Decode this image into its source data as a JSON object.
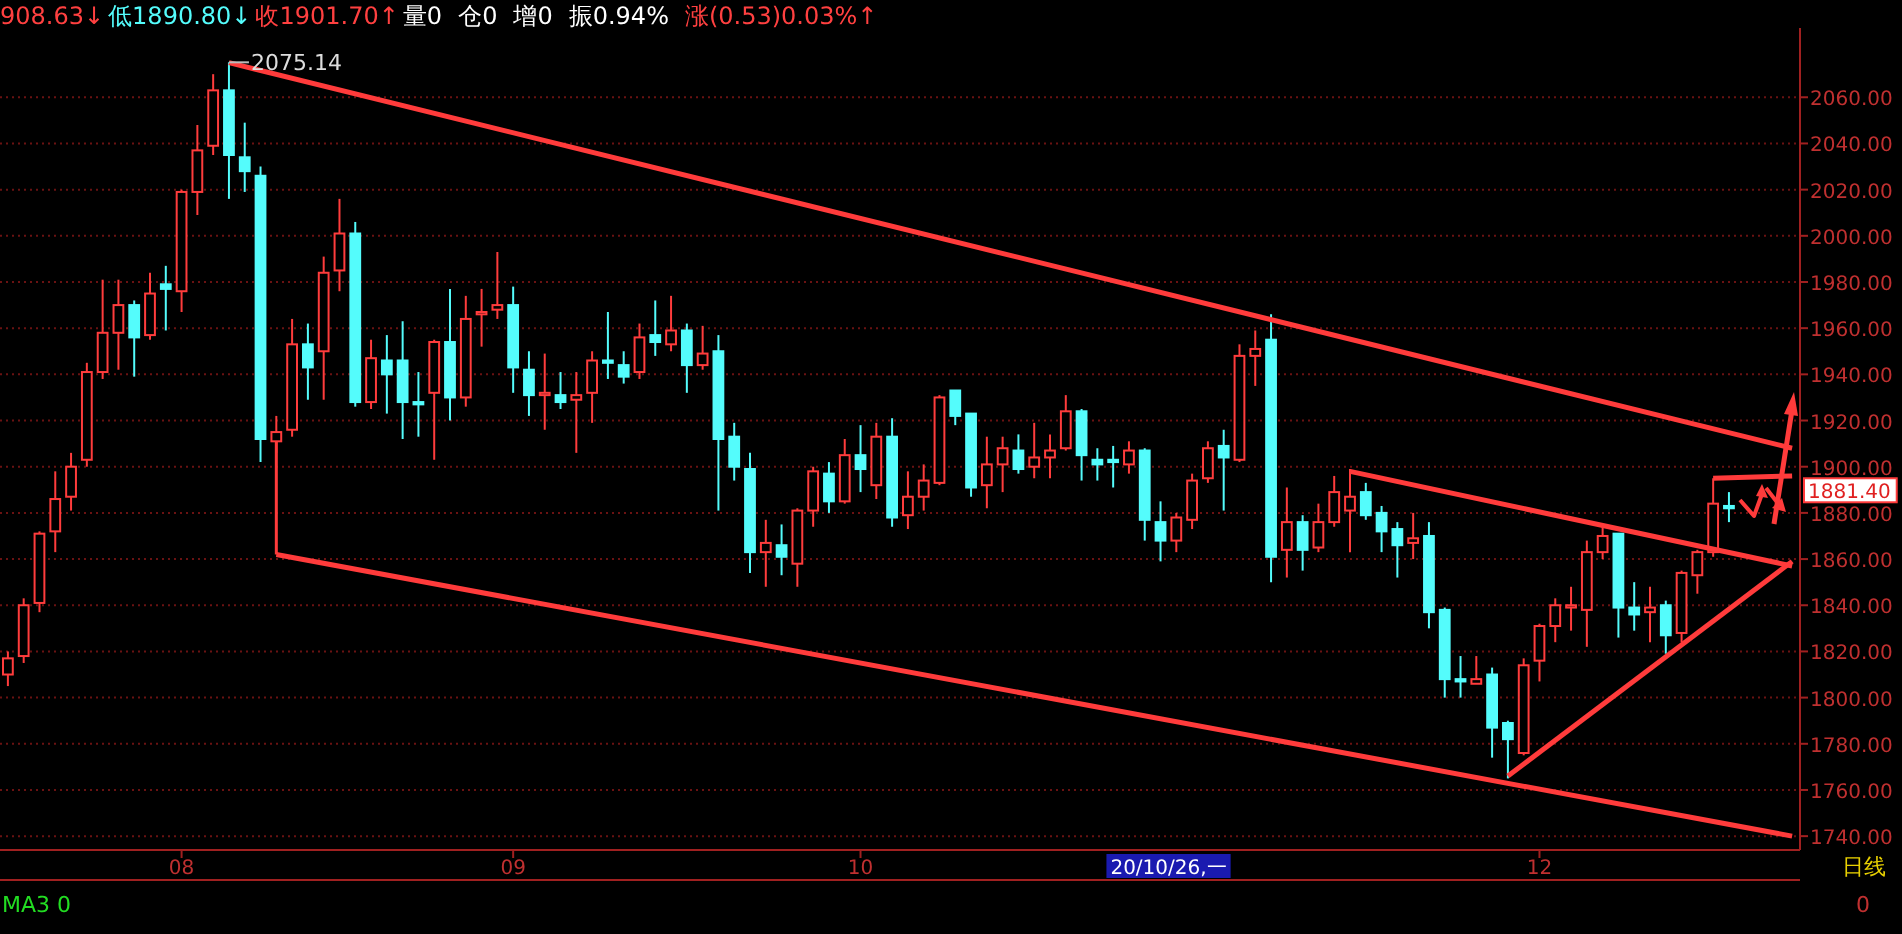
{
  "chart_data": {
    "type": "candlestick",
    "categories": [
      null,
      null,
      null,
      null,
      null,
      null,
      null,
      null,
      null,
      null,
      null,
      "08",
      null,
      null,
      null,
      null,
      null,
      null,
      null,
      null,
      null,
      null,
      null,
      null,
      null,
      null,
      null,
      null,
      null,
      null,
      null,
      null,
      "09",
      null,
      null,
      null,
      null,
      null,
      null,
      null,
      null,
      null,
      null,
      null,
      null,
      null,
      null,
      null,
      null,
      null,
      null,
      null,
      null,
      null,
      "10",
      null,
      null,
      null,
      null,
      null,
      null,
      null,
      null,
      null,
      null,
      null,
      null,
      null,
      null,
      null,
      null,
      null,
      null,
      null,
      null,
      null,
      null,
      null,
      null,
      null,
      null,
      null,
      null,
      null,
      null,
      null,
      null,
      null,
      null,
      null,
      null,
      null,
      null,
      null,
      null,
      null,
      null,
      "12",
      null,
      null,
      null,
      null,
      null,
      null,
      null,
      null,
      null,
      null,
      null,
      null,
      null,
      null,
      null,
      null
    ],
    "ohlc": [
      [
        1810,
        1820,
        1805,
        1817
      ],
      [
        1818,
        1843,
        1815,
        1840
      ],
      [
        1841,
        1872,
        1837,
        1871
      ],
      [
        1872,
        1898,
        1863,
        1886
      ],
      [
        1887,
        1906,
        1881,
        1900
      ],
      [
        1903,
        1945,
        1900,
        1941
      ],
      [
        1941,
        1981,
        1938,
        1958
      ],
      [
        1958,
        1981,
        1942,
        1970
      ],
      [
        1970,
        1972,
        1939,
        1956
      ],
      [
        1957,
        1984,
        1955,
        1975
      ],
      [
        1979,
        1987,
        1959,
        1977
      ],
      [
        1976,
        2020,
        1967,
        2019
      ],
      [
        2019,
        2048,
        2009,
        2037
      ],
      [
        2039,
        2070,
        2035,
        2063
      ],
      [
        2063,
        2075.14,
        2016,
        2035
      ],
      [
        2034,
        2049,
        2019,
        2028
      ],
      [
        2026,
        2030,
        1902,
        1912
      ],
      [
        1911,
        1922,
        1906,
        1915
      ],
      [
        1916,
        1964,
        1913,
        1953
      ],
      [
        1953,
        1962,
        1929,
        1943
      ],
      [
        1950,
        1991,
        1929,
        1984
      ],
      [
        1985,
        2016,
        1976,
        2001
      ],
      [
        2001,
        2006,
        1926,
        1928
      ],
      [
        1928,
        1955,
        1925,
        1947
      ],
      [
        1946,
        1957,
        1923,
        1940
      ],
      [
        1946,
        1963,
        1912,
        1928
      ],
      [
        1928,
        1941,
        1913,
        1927
      ],
      [
        1932,
        1955,
        1903,
        1954
      ],
      [
        1954,
        1977,
        1920,
        1930
      ],
      [
        1930,
        1974,
        1926,
        1964
      ],
      [
        1966,
        1977,
        1952,
        1967
      ],
      [
        1968,
        1993,
        1964,
        1970
      ],
      [
        1970,
        1978,
        1932,
        1943
      ],
      [
        1942,
        1950,
        1922,
        1931
      ],
      [
        1931,
        1949,
        1916,
        1932
      ],
      [
        1931,
        1941,
        1925,
        1928
      ],
      [
        1929,
        1941,
        1906,
        1931
      ],
      [
        1932,
        1950,
        1919,
        1946
      ],
      [
        1946,
        1967,
        1938,
        1945
      ],
      [
        1944,
        1950,
        1936,
        1939
      ],
      [
        1941,
        1962,
        1938,
        1956
      ],
      [
        1957,
        1972,
        1948,
        1954
      ],
      [
        1953,
        1974,
        1950,
        1959
      ],
      [
        1959,
        1962,
        1932,
        1944
      ],
      [
        1944,
        1961,
        1942,
        1949
      ],
      [
        1950,
        1957,
        1881,
        1912
      ],
      [
        1913,
        1919,
        1894,
        1900
      ],
      [
        1899,
        1906,
        1854,
        1863
      ],
      [
        1863,
        1877,
        1848,
        1867
      ],
      [
        1866,
        1875,
        1853,
        1861
      ],
      [
        1858,
        1882,
        1848,
        1881
      ],
      [
        1881,
        1900,
        1874,
        1898
      ],
      [
        1897,
        1902,
        1880,
        1885
      ],
      [
        1885,
        1912,
        1884,
        1905
      ],
      [
        1905,
        1918,
        1889,
        1899
      ],
      [
        1892,
        1919,
        1886,
        1913
      ],
      [
        1913,
        1921,
        1874,
        1878
      ],
      [
        1879,
        1898,
        1873,
        1887
      ],
      [
        1887,
        1901,
        1881,
        1894
      ],
      [
        1893,
        1931,
        1892,
        1930
      ],
      [
        1933,
        1933,
        1918,
        1922
      ],
      [
        1923,
        1923,
        1887,
        1891
      ],
      [
        1892,
        1913,
        1882,
        1901
      ],
      [
        1901,
        1913,
        1889,
        1908
      ],
      [
        1907,
        1914,
        1897,
        1899
      ],
      [
        1900,
        1919,
        1895,
        1904
      ],
      [
        1904,
        1914,
        1895,
        1907
      ],
      [
        1908,
        1931,
        1907,
        1924
      ],
      [
        1924,
        1925,
        1894,
        1905
      ],
      [
        1903,
        1908,
        1894,
        1901
      ],
      [
        1903,
        1909,
        1891,
        1902
      ],
      [
        1901,
        1911,
        1897,
        1907
      ],
      [
        1907,
        1908,
        1868,
        1877
      ],
      [
        1876,
        1885,
        1859,
        1868
      ],
      [
        1868,
        1880,
        1863,
        1878
      ],
      [
        1877,
        1897,
        1873,
        1894
      ],
      [
        1895,
        1911,
        1893,
        1908
      ],
      [
        1909,
        1916,
        1881,
        1904
      ],
      [
        1903,
        1953,
        1902,
        1948
      ],
      [
        1948,
        1959,
        1935,
        1951
      ],
      [
        1955,
        1966,
        1850,
        1861
      ],
      [
        1864,
        1891,
        1852,
        1876
      ],
      [
        1876,
        1879,
        1855,
        1864
      ],
      [
        1865,
        1884,
        1863,
        1876
      ],
      [
        1876,
        1896,
        1874,
        1889
      ],
      [
        1881,
        1899,
        1863,
        1887
      ],
      [
        1889,
        1893,
        1877,
        1879
      ],
      [
        1880,
        1883,
        1863,
        1872
      ],
      [
        1873,
        1876,
        1852,
        1866
      ],
      [
        1867,
        1880,
        1860,
        1869
      ],
      [
        1870,
        1876,
        1830,
        1837
      ],
      [
        1838,
        1839,
        1800,
        1808
      ],
      [
        1808,
        1818,
        1800,
        1807
      ],
      [
        1806,
        1818,
        1806,
        1808
      ],
      [
        1810,
        1813,
        1774,
        1787
      ],
      [
        1789,
        1790,
        1765,
        1782
      ],
      [
        1776,
        1817,
        1775,
        1814
      ],
      [
        1816,
        1832,
        1807,
        1831
      ],
      [
        1831,
        1843,
        1824,
        1840
      ],
      [
        1839,
        1848,
        1829,
        1840
      ],
      [
        1838,
        1868,
        1822,
        1863
      ],
      [
        1863,
        1874,
        1860,
        1870
      ],
      [
        1871,
        1871,
        1826,
        1839
      ],
      [
        1839,
        1850,
        1829,
        1836
      ],
      [
        1837,
        1848,
        1824,
        1839
      ],
      [
        1840,
        1842,
        1819,
        1827
      ],
      [
        1828,
        1855,
        1824,
        1854
      ],
      [
        1853,
        1864,
        1845,
        1863
      ],
      [
        1863,
        1895,
        1861,
        1884
      ],
      [
        1883,
        1889,
        1876,
        1882
      ],
      null,
      null,
      null,
      null
    ],
    "colors": [
      "#ff3c3c",
      "#ff3c3c",
      "#ff3c3c",
      "#ff3c3c",
      "#ff3c3c",
      "#ff3c3c",
      "#ff3c3c",
      "#ff3c3c",
      "#54fcfc",
      "#ff3c3c",
      "#54fcfc",
      "#ff3c3c",
      "#ff3c3c",
      "#ff3c3c",
      "#54fcfc",
      "#54fcfc",
      "#54fcfc",
      "#ff3c3c",
      "#ff3c3c",
      "#54fcfc",
      "#ff3c3c",
      "#ff3c3c",
      "#54fcfc",
      "#ff3c3c",
      "#54fcfc",
      "#54fcfc",
      "#54fcfc",
      "#ff3c3c",
      "#54fcfc",
      "#ff3c3c",
      "#ff3c3c",
      "#ff3c3c",
      "#54fcfc",
      "#54fcfc",
      "#ff3c3c",
      "#54fcfc",
      "#ff3c3c",
      "#ff3c3c",
      "#54fcfc",
      "#54fcfc",
      "#ff3c3c",
      "#54fcfc",
      "#ff3c3c",
      "#54fcfc",
      "#ff3c3c",
      "#54fcfc",
      "#54fcfc",
      "#54fcfc",
      "#ff3c3c",
      "#54fcfc",
      "#ff3c3c",
      "#ff3c3c",
      "#54fcfc",
      "#ff3c3c",
      "#54fcfc",
      "#ff3c3c",
      "#54fcfc",
      "#ff3c3c",
      "#ff3c3c",
      "#ff3c3c",
      "#54fcfc",
      "#54fcfc",
      "#ff3c3c",
      "#ff3c3c",
      "#54fcfc",
      "#ff3c3c",
      "#ff3c3c",
      "#ff3c3c",
      "#54fcfc",
      "#54fcfc",
      "#54fcfc",
      "#ff3c3c",
      "#54fcfc",
      "#54fcfc",
      "#ff3c3c",
      "#ff3c3c",
      "#ff3c3c",
      "#54fcfc",
      "#ff3c3c",
      "#ff3c3c",
      "#54fcfc",
      "#ff3c3c",
      "#54fcfc",
      "#ff3c3c",
      "#ff3c3c",
      "#ff3c3c",
      "#54fcfc",
      "#54fcfc",
      "#54fcfc",
      "#ff3c3c",
      "#54fcfc",
      "#54fcfc",
      "#54fcfc",
      "#ff3c3c",
      "#54fcfc",
      "#54fcfc",
      "#ff3c3c",
      "#ff3c3c",
      "#ff3c3c",
      "#ff3c3c",
      "#ff3c3c",
      "#ff3c3c",
      "#54fcfc",
      "#54fcfc",
      "#ff3c3c",
      "#54fcfc",
      "#ff3c3c",
      "#ff3c3c",
      "#ff3c3c",
      "#54fcfc",
      null,
      null,
      null,
      null
    ],
    "series": [
      {
        "type": "line",
        "color": "#ff3b3b",
        "values": [
          null,
          null,
          null,
          null,
          null,
          null,
          null,
          null,
          null,
          null,
          null,
          null,
          null,
          null,
          2075,
          null,
          null,
          null,
          null,
          null,
          null,
          null,
          null,
          null,
          null,
          null,
          null,
          null,
          null,
          null,
          null,
          null,
          null,
          null,
          null,
          null,
          null,
          null,
          null,
          null,
          null,
          null,
          null,
          null,
          null,
          null,
          null,
          null,
          null,
          null,
          null,
          null,
          null,
          null,
          null,
          null,
          null,
          null,
          null,
          null,
          null,
          null,
          null,
          null,
          null,
          null,
          null,
          null,
          null,
          null,
          null,
          null,
          null,
          null,
          null,
          null,
          null,
          null,
          null,
          null,
          null,
          null,
          null,
          null,
          null,
          null,
          null,
          null,
          null,
          null,
          null,
          null,
          null,
          null,
          null,
          null,
          null,
          null,
          null,
          null,
          null,
          null,
          null,
          null,
          null,
          null,
          null,
          null,
          null,
          null,
          null,
          null,
          null,
          1908
        ]
      },
      {
        "type": "line",
        "color": "#ff3b3b",
        "values": [
          null,
          null,
          null,
          null,
          null,
          null,
          null,
          null,
          null,
          null,
          null,
          null,
          null,
          null,
          null,
          null,
          null,
          1862,
          null,
          null,
          null,
          null,
          null,
          null,
          null,
          null,
          null,
          null,
          null,
          null,
          null,
          null,
          null,
          null,
          null,
          null,
          null,
          null,
          null,
          null,
          null,
          null,
          null,
          null,
          null,
          null,
          null,
          null,
          null,
          null,
          null,
          null,
          null,
          null,
          null,
          null,
          null,
          null,
          null,
          null,
          null,
          null,
          null,
          null,
          null,
          null,
          null,
          null,
          null,
          null,
          null,
          null,
          null,
          null,
          null,
          null,
          null,
          null,
          null,
          null,
          null,
          null,
          null,
          null,
          null,
          null,
          null,
          null,
          null,
          null,
          null,
          null,
          null,
          null,
          null,
          null,
          null,
          null,
          null,
          null,
          null,
          null,
          null,
          null,
          null,
          null,
          null,
          null,
          null,
          null,
          null,
          null,
          null,
          1740
        ]
      },
      {
        "type": "line",
        "color": "#ff3b3b",
        "values": [
          null,
          null,
          null,
          null,
          null,
          null,
          null,
          null,
          null,
          null,
          null,
          null,
          null,
          null,
          null,
          null,
          null,
          null,
          null,
          null,
          null,
          null,
          null,
          null,
          null,
          null,
          null,
          null,
          null,
          null,
          null,
          null,
          null,
          null,
          null,
          null,
          null,
          null,
          null,
          null,
          null,
          null,
          null,
          null,
          null,
          null,
          null,
          null,
          null,
          null,
          null,
          null,
          null,
          null,
          null,
          null,
          null,
          null,
          null,
          null,
          null,
          null,
          null,
          null,
          null,
          null,
          null,
          null,
          null,
          null,
          null,
          null,
          null,
          null,
          null,
          null,
          null,
          null,
          null,
          null,
          null,
          null,
          null,
          null,
          null,
          1898,
          null,
          null,
          null,
          null,
          null,
          null,
          null,
          null,
          null,
          null,
          null,
          null,
          null,
          null,
          null,
          null,
          null,
          null,
          null,
          null,
          null,
          null,
          null,
          null,
          null,
          null,
          null,
          1857
        ]
      },
      {
        "type": "line",
        "color": "#ff3b3b",
        "values": [
          null,
          null,
          null,
          null,
          null,
          null,
          null,
          null,
          null,
          null,
          null,
          null,
          null,
          null,
          null,
          null,
          null,
          null,
          null,
          null,
          null,
          null,
          null,
          null,
          null,
          null,
          null,
          null,
          null,
          null,
          null,
          null,
          null,
          null,
          null,
          null,
          null,
          null,
          null,
          null,
          null,
          null,
          null,
          null,
          null,
          null,
          null,
          null,
          null,
          null,
          null,
          null,
          null,
          null,
          null,
          null,
          null,
          null,
          null,
          null,
          null,
          null,
          null,
          null,
          null,
          null,
          null,
          null,
          null,
          null,
          null,
          null,
          null,
          null,
          null,
          null,
          null,
          null,
          null,
          null,
          null,
          null,
          null,
          null,
          null,
          null,
          null,
          null,
          null,
          null,
          null,
          null,
          null,
          null,
          null,
          1766,
          null,
          null,
          null,
          null,
          null,
          null,
          null,
          null,
          null,
          null,
          null,
          null,
          null,
          null,
          null,
          null,
          null,
          1859
        ]
      },
      {
        "type": "line",
        "color": "#ff3b3b",
        "values": [
          null,
          null,
          null,
          null,
          null,
          null,
          null,
          null,
          null,
          null,
          null,
          null,
          null,
          null,
          null,
          null,
          null,
          null,
          null,
          null,
          null,
          null,
          null,
          null,
          null,
          null,
          null,
          null,
          null,
          null,
          null,
          null,
          null,
          null,
          null,
          null,
          null,
          null,
          null,
          null,
          null,
          null,
          null,
          null,
          null,
          null,
          null,
          null,
          null,
          null,
          null,
          null,
          null,
          null,
          null,
          null,
          null,
          null,
          null,
          null,
          null,
          null,
          null,
          null,
          null,
          null,
          null,
          null,
          null,
          null,
          null,
          null,
          null,
          null,
          null,
          null,
          null,
          null,
          null,
          null,
          null,
          null,
          null,
          null,
          null,
          null,
          null,
          null,
          null,
          null,
          null,
          null,
          null,
          null,
          null,
          null,
          null,
          null,
          null,
          null,
          null,
          null,
          null,
          null,
          null,
          null,
          null,
          null,
          1895,
          null,
          null,
          null,
          null,
          1896
        ]
      }
    ],
    "ylim": [
      1734,
      2090
    ],
    "yticks": [
      {
        "value": 1740,
        "label": "1740.00"
      },
      {
        "value": 1760,
        "label": "1760.00"
      },
      {
        "value": 1780,
        "label": "1780.00"
      },
      {
        "value": 1800,
        "label": "1800.00"
      },
      {
        "value": 1820,
        "label": "1820.00"
      },
      {
        "value": 1840,
        "label": "1840.00"
      },
      {
        "value": 1860,
        "label": "1860.00"
      },
      {
        "value": 1880,
        "label": "1880.00"
      },
      {
        "value": 1900,
        "label": "1900.00"
      },
      {
        "value": 1920,
        "label": "1920.00"
      },
      {
        "value": 1940,
        "label": "1940.00"
      },
      {
        "value": 1960,
        "label": "1960.00"
      },
      {
        "value": 1980,
        "label": "1980.00"
      },
      {
        "value": 2000,
        "label": "2000.00"
      },
      {
        "value": 2020,
        "label": "2020.00"
      },
      {
        "value": 2040,
        "label": "2040.00"
      },
      {
        "value": 2060,
        "label": "2060.00"
      }
    ],
    "grid": "y",
    "annotations": [
      "908.63↓",
      "低1890.80↓",
      "收1901.70↑",
      "量0",
      "仓0",
      "增0",
      "振0.94%",
      "涨(0.53)0.03%↑",
      "20/10/26,一",
      "MA3 0",
      "日线",
      "0",
      "1881.40",
      "2075.14"
    ]
  }
}
